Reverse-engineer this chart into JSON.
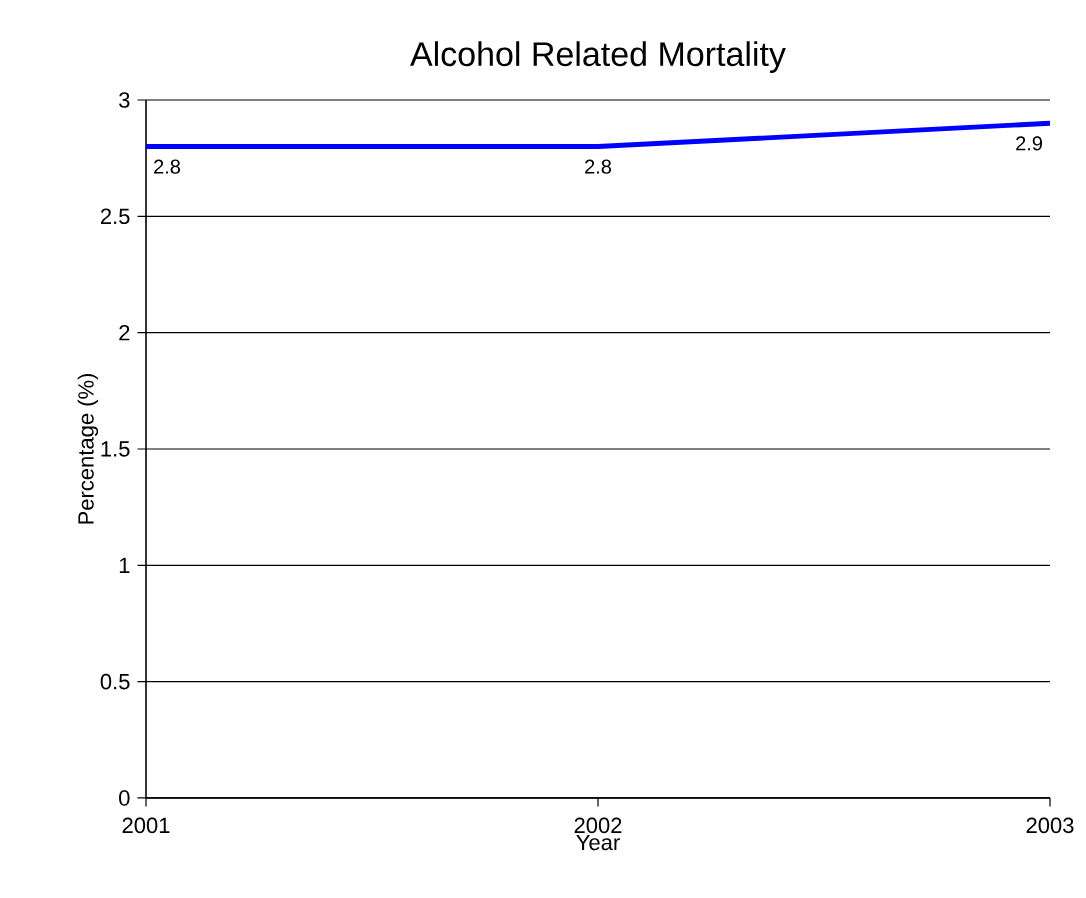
{
  "chart_data": {
    "type": "line",
    "title": "Alcohol Related Mortality",
    "xlabel": "Year",
    "ylabel": "Percentage (%)",
    "x": [
      2001,
      2002,
      2003
    ],
    "series": [
      {
        "color": "#0000ff",
        "values": [
          2.8,
          2.8,
          2.9
        ]
      }
    ],
    "xlim": [
      2001,
      2003
    ],
    "xticks": [
      2001,
      2002,
      2003
    ],
    "ylim": [
      0,
      3
    ],
    "yticks": [
      0,
      0.5,
      1,
      1.5,
      2,
      2.5,
      3
    ],
    "grid": "y",
    "data_labels": true,
    "marker": "none",
    "line_style": "solid"
  }
}
